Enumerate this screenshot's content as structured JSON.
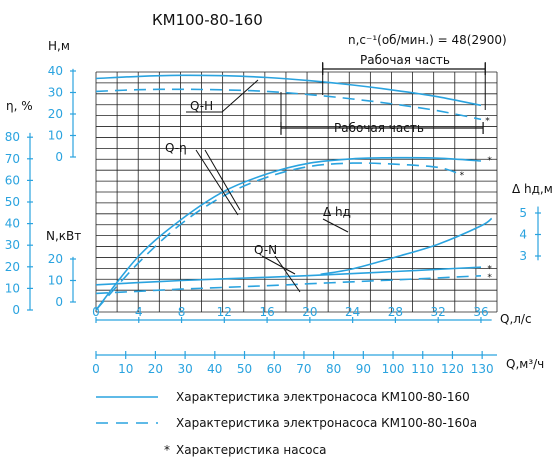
{
  "chart_data": {
    "type": "line",
    "title": "КМ100-80-160",
    "speed_label": "n,c⁻¹(об/мин.) = 48(2900)",
    "working_range_label": "Рабочая часть",
    "working_range_label_lower": "Рабочая часть",
    "annotations": [
      "Q-H",
      "Q-η",
      "Δ hд",
      "Q-N"
    ],
    "x_axis": {
      "label": "Q,л/с",
      "ticks": [
        0,
        4,
        8,
        12,
        16,
        20,
        24,
        28,
        32,
        36
      ],
      "range": [
        0,
        37.5
      ]
    },
    "x2_axis": {
      "label": "Q,м³/ч",
      "ticks": [
        0,
        10,
        20,
        30,
        40,
        50,
        60,
        70,
        80,
        90,
        100,
        110,
        120,
        130
      ],
      "range": [
        0,
        135
      ]
    },
    "y_axes": {
      "H": {
        "label": "H,м",
        "ticks": [
          0,
          10,
          20,
          30,
          40
        ]
      },
      "eta": {
        "label": "η, %",
        "ticks": [
          0,
          10,
          20,
          30,
          40,
          50,
          60,
          70,
          80
        ]
      },
      "N": {
        "label": "N,кВт",
        "ticks": [
          0,
          10,
          20
        ]
      },
      "dh": {
        "label": "Δ hд,м",
        "ticks": [
          3,
          4,
          5
        ]
      }
    },
    "grid": true,
    "series": [
      {
        "curve": "H",
        "variant": "КМ100-80-160",
        "style": "solid",
        "x": [
          0,
          4,
          8,
          12,
          16,
          20,
          24,
          28,
          32,
          36
        ],
        "values": [
          36.5,
          37.5,
          38,
          37.8,
          37,
          35.5,
          33.5,
          31,
          28,
          24
        ]
      },
      {
        "curve": "H",
        "variant": "КМ100-80-160а",
        "style": "dashed",
        "x": [
          0,
          4,
          8,
          12,
          16,
          20,
          24,
          28,
          32,
          36
        ],
        "values": [
          30.5,
          31.3,
          31.5,
          31.2,
          30.5,
          29,
          27,
          24.5,
          21.5,
          17.5
        ]
      },
      {
        "curve": "eta",
        "variant": "КМ100-80-160",
        "style": "solid",
        "x": [
          0,
          4,
          8,
          12,
          16,
          20,
          24,
          28,
          32,
          36
        ],
        "values": [
          0,
          25,
          42,
          55,
          63,
          68,
          70,
          70.5,
          70.3,
          69
        ]
      },
      {
        "curve": "eta",
        "variant": "КМ100-80-160а",
        "style": "dashed",
        "x": [
          0,
          4,
          8,
          12,
          16,
          20,
          24,
          28,
          32,
          34
        ],
        "values": [
          0,
          22,
          40,
          53,
          61.5,
          66.5,
          68,
          67.5,
          66,
          63
        ]
      },
      {
        "curve": "N",
        "variant": "КМ100-80-160",
        "style": "solid",
        "x": [
          0,
          4,
          8,
          12,
          16,
          20,
          24,
          28,
          32,
          36
        ],
        "values": [
          8,
          9,
          10,
          10.8,
          11.5,
          12.3,
          13.2,
          14.2,
          15.2,
          16.2
        ]
      },
      {
        "curve": "N",
        "variant": "КМ100-80-160а",
        "style": "dashed",
        "x": [
          0,
          4,
          8,
          12,
          16,
          20,
          24,
          28,
          32,
          36
        ],
        "values": [
          4,
          5,
          6,
          6.8,
          7.6,
          8.5,
          9.4,
          10.3,
          11.2,
          12.2
        ]
      },
      {
        "curve": "dh",
        "variant": "КМ100-80-160",
        "style": "solid",
        "x": [
          21,
          24,
          28,
          32,
          36,
          37
        ],
        "values": [
          2.15,
          2.4,
          2.95,
          3.55,
          4.4,
          4.75
        ]
      }
    ],
    "legend": [
      {
        "style": "solid",
        "label": "Характеристика электронасоса КМ100-80-160"
      },
      {
        "style": "dashed",
        "label": "Характеристика электронасоса КМ100-80-160а"
      },
      {
        "style": "point",
        "label": "Характеристика насоса"
      }
    ]
  }
}
